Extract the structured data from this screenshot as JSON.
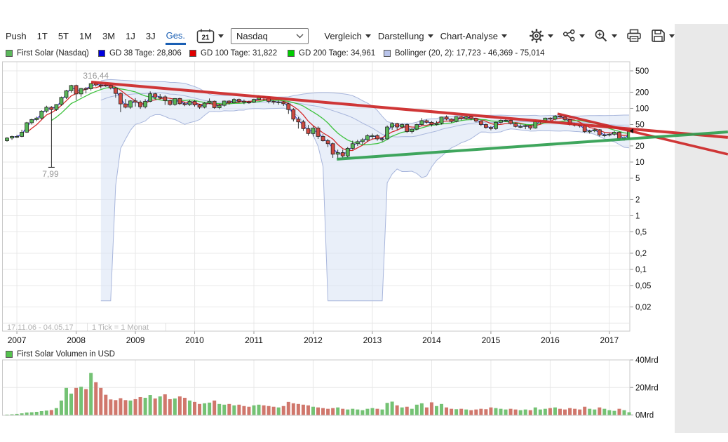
{
  "toolbar": {
    "push": "Push",
    "ranges": [
      "1T",
      "5T",
      "1M",
      "3M",
      "1J",
      "3J",
      "Ges."
    ],
    "active_range": "Ges.",
    "calendar_label": "21",
    "symbol": "Nasdaq",
    "menus": [
      "Vergleich",
      "Darstellung",
      "Chart-Analyse"
    ],
    "icon_names": [
      "gear-icon",
      "share-icon",
      "zoom-in-icon",
      "printer-icon",
      "save-icon"
    ]
  },
  "legend": [
    {
      "label": "First Solar (Nasdaq)",
      "color": "#5cb85c"
    },
    {
      "label": "GD 38 Tage: 28,806",
      "color": "#0000e0"
    },
    {
      "label": "GD 100 Tage: 31,822",
      "color": "#e00000"
    },
    {
      "label": "GD 200 Tage: 34,961",
      "color": "#00cc00"
    },
    {
      "label": "Bollinger (20, 2): 17,723 - 46,369 - 75,014",
      "color": "#b9c4ea"
    }
  ],
  "volume_legend": {
    "label": "First Solar Volumen in USD",
    "color": "#55c24e"
  },
  "footer": {
    "date_range": "17.11.06 - 04.05.17",
    "tick_info": "1 Tick = 1 Monat"
  },
  "chart_data": [
    {
      "type": "candlestick",
      "title": "First Solar (Nasdaq)",
      "scale": "log",
      "tick_interval": "1 Monat",
      "start_month": "2006-11",
      "end_month": "2017-05",
      "x_labels": [
        "2007",
        "2008",
        "2009",
        "2010",
        "2011",
        "2012",
        "2013",
        "2014",
        "2015",
        "2016",
        "2017"
      ],
      "y_ticks": [
        [
          500,
          "500"
        ],
        [
          200,
          "200"
        ],
        [
          100,
          "100"
        ],
        [
          50,
          "50"
        ],
        [
          20,
          "20"
        ],
        [
          10,
          "10"
        ],
        [
          5,
          "5"
        ],
        [
          2,
          "2"
        ],
        [
          1,
          "1"
        ],
        [
          0.5,
          "0,5"
        ],
        [
          0.2,
          "0,2"
        ],
        [
          0.1,
          "0,1"
        ],
        [
          0.05,
          "0,05"
        ],
        [
          0.02,
          "0,02"
        ]
      ],
      "annotations": [
        {
          "text": "316,44",
          "m": 18.0,
          "v": 359,
          "anchor": "middle"
        },
        {
          "text": "7,99",
          "m": 8.8,
          "v": 5.3,
          "anchor": "middle"
        }
      ],
      "glitch_cap_index": 9,
      "glitch_low": 7.99,
      "last_price": 38,
      "indicators": {
        "gd38_window": 2,
        "gd100_window": 5,
        "gd200_window": 10,
        "bollinger_window": 20,
        "bollinger_k": 2
      },
      "trendlines": [
        {
          "name": "resistance-2008",
          "color": "#cc2626",
          "width": 4,
          "points": [
            [
              17.05,
              308.9
            ],
            [
              146.0,
              28.8
            ]
          ]
        },
        {
          "name": "resistance-2016",
          "color": "#cc2626",
          "width": 3.5,
          "points": [
            [
              111.5,
              79.5
            ],
            [
              146.0,
              13.95
            ]
          ]
        },
        {
          "name": "support-2012",
          "color": "#2f9e4f",
          "width": 4,
          "points": [
            [
              66.8,
              11.3
            ],
            [
              146.0,
              36.4
            ]
          ]
        }
      ],
      "colors": {
        "candle_up": "#58b558",
        "candle_down": "#cf4a42",
        "candle_border": "#222222",
        "gd38": "#2a2ae0",
        "gd100": "#d42a2a",
        "gd200": "#3ec23e",
        "bollinger_fill": "#d7e1f4",
        "bollinger_edge": "#a8b6dc",
        "grid": "#e8e8e8",
        "border": "#c9c9c9",
        "axis_text": "#111111",
        "muted_text": "#b3b3b3"
      },
      "ohlc": [
        [
          25,
          29,
          24,
          28
        ],
        [
          28,
          31,
          26,
          30
        ],
        [
          30,
          32,
          28,
          30
        ],
        [
          30,
          40,
          29,
          36
        ],
        [
          36,
          56,
          35,
          54
        ],
        [
          54,
          64,
          50,
          62
        ],
        [
          62,
          70,
          58,
          66
        ],
        [
          66,
          92,
          62,
          89
        ],
        [
          89,
          112,
          83,
          105
        ],
        [
          105,
          110,
          7.99,
          95
        ],
        [
          95,
          120,
          90,
          118
        ],
        [
          118,
          166,
          112,
          160
        ],
        [
          160,
          221,
          150,
          213
        ],
        [
          213,
          275,
          197,
          267
        ],
        [
          267,
          277,
          142,
          186
        ],
        [
          186,
          240,
          165,
          235
        ],
        [
          235,
          250,
          190,
          232
        ],
        [
          232,
          295,
          215,
          289
        ],
        [
          289,
          316.44,
          255,
          273
        ],
        [
          273,
          288,
          235,
          272
        ],
        [
          272,
          291,
          252,
          267
        ],
        [
          267,
          280,
          226,
          240
        ],
        [
          240,
          250,
          158,
          190
        ],
        [
          190,
          198,
          85,
          121
        ],
        [
          121,
          150,
          100,
          105
        ],
        [
          105,
          142,
          98,
          138
        ],
        [
          138,
          155,
          108,
          131
        ],
        [
          131,
          140,
          98,
          107
        ],
        [
          107,
          148,
          100,
          135
        ],
        [
          135,
          207,
          130,
          187
        ],
        [
          187,
          195,
          148,
          162
        ],
        [
          162,
          185,
          148,
          164
        ],
        [
          164,
          175,
          116,
          140
        ],
        [
          140,
          146,
          112,
          118
        ],
        [
          118,
          155,
          112,
          153
        ],
        [
          153,
          158,
          116,
          122
        ],
        [
          122,
          132,
          110,
          117
        ],
        [
          117,
          142,
          112,
          135
        ],
        [
          135,
          142,
          108,
          116
        ],
        [
          116,
          122,
          98,
          105
        ],
        [
          105,
          131,
          100,
          125
        ],
        [
          125,
          153,
          120,
          136
        ],
        [
          136,
          140,
          98,
          103
        ],
        [
          103,
          121,
          97,
          114
        ],
        [
          114,
          140,
          108,
          137
        ],
        [
          137,
          142,
          118,
          127
        ],
        [
          127,
          154,
          123,
          147
        ],
        [
          147,
          152,
          127,
          136
        ],
        [
          136,
          146,
          120,
          131
        ],
        [
          131,
          139,
          122,
          130
        ],
        [
          130,
          151,
          126,
          147
        ],
        [
          147,
          175,
          141,
          165
        ],
        [
          165,
          171,
          139,
          160
        ],
        [
          160,
          164,
          124,
          135
        ],
        [
          135,
          141,
          119,
          132
        ],
        [
          132,
          139,
          117,
          132
        ],
        [
          132,
          137,
          111,
          122
        ],
        [
          122,
          127,
          79,
          95
        ],
        [
          95,
          101,
          57,
          63
        ],
        [
          63,
          69,
          42,
          56
        ],
        [
          56,
          61,
          38,
          42
        ],
        [
          42,
          49,
          31,
          34
        ],
        [
          34,
          47,
          30,
          43
        ],
        [
          43,
          46,
          27,
          30
        ],
        [
          30,
          33,
          24,
          25
        ],
        [
          25,
          27,
          19,
          22
        ],
        [
          22,
          23,
          12,
          14
        ],
        [
          14,
          17,
          11.43,
          15
        ],
        [
          15,
          17,
          12,
          13
        ],
        [
          13,
          19,
          12,
          18
        ],
        [
          18,
          25,
          17,
          22
        ],
        [
          22,
          26,
          20,
          24
        ],
        [
          24,
          28,
          21,
          26
        ],
        [
          26,
          33,
          24,
          31
        ],
        [
          31,
          34,
          27,
          31
        ],
        [
          31,
          33,
          25,
          27
        ],
        [
          27,
          29,
          24,
          27
        ],
        [
          27,
          48,
          26,
          45
        ],
        [
          45,
          55,
          40,
          52
        ],
        [
          52,
          54,
          40,
          45
        ],
        [
          45,
          52,
          42,
          50
        ],
        [
          50,
          52,
          35,
          37
        ],
        [
          37,
          43,
          34,
          41
        ],
        [
          41,
          52,
          39,
          50
        ],
        [
          50,
          66,
          48,
          59
        ],
        [
          59,
          62,
          52,
          55
        ],
        [
          55,
          58,
          46,
          50
        ],
        [
          50,
          58,
          48,
          53
        ],
        [
          53,
          70,
          50,
          69
        ],
        [
          69,
          74,
          60,
          63
        ],
        [
          63,
          65,
          54,
          57
        ],
        [
          57,
          71,
          55,
          70
        ],
        [
          70,
          72,
          60,
          65
        ],
        [
          65,
          73,
          62,
          70
        ],
        [
          70,
          72,
          60,
          65
        ],
        [
          65,
          67,
          55,
          58
        ],
        [
          58,
          61,
          47,
          50
        ],
        [
          50,
          52,
          42,
          44
        ],
        [
          44,
          47,
          39,
          42
        ],
        [
          42,
          56,
          40,
          55
        ],
        [
          55,
          62,
          52,
          60
        ],
        [
          60,
          64,
          56,
          60
        ],
        [
          60,
          62,
          50,
          52
        ],
        [
          52,
          54,
          44,
          46
        ],
        [
          46,
          50,
          43,
          46
        ],
        [
          46,
          50,
          41,
          48
        ],
        [
          48,
          49,
          40,
          43
        ],
        [
          43,
          59,
          42,
          57
        ],
        [
          57,
          61,
          52,
          58
        ],
        [
          58,
          67,
          54,
          66
        ],
        [
          66,
          68,
          58,
          63
        ],
        [
          63,
          74.8,
          60,
          72
        ],
        [
          72,
          75,
          65,
          69
        ],
        [
          69,
          71,
          58,
          62
        ],
        [
          62,
          64,
          48,
          50
        ],
        [
          50,
          54,
          46,
          49
        ],
        [
          49,
          50,
          44,
          47
        ],
        [
          47,
          48,
          35,
          37
        ],
        [
          37,
          40,
          34,
          38
        ],
        [
          38,
          42,
          36,
          40
        ],
        [
          40,
          41,
          30,
          32
        ],
        [
          32,
          35,
          29,
          32
        ],
        [
          32,
          35,
          30,
          33
        ],
        [
          33,
          38,
          31,
          36
        ],
        [
          36,
          37,
          25,
          27
        ],
        [
          27,
          30,
          25,
          28
        ],
        [
          28,
          40,
          27,
          38
        ]
      ]
    },
    {
      "type": "bar",
      "title": "First Solar Volumen in USD",
      "ylabel": "Mrd USD",
      "y_ticks": [
        [
          40,
          "40Mrd"
        ],
        [
          20,
          "20Mrd"
        ],
        [
          0,
          "0Mrd"
        ]
      ],
      "color_rule": "green if candle close >= open, else red",
      "bar_up": "#74c274",
      "bar_down": "#d0776c",
      "values": [
        0.3,
        0.5,
        0.8,
        1.2,
        1.8,
        2.0,
        2.3,
        2.8,
        3.2,
        3.6,
        5.0,
        10.5,
        19.7,
        15.5,
        19.7,
        20.5,
        18.8,
        30.5,
        23.8,
        19.7,
        14.7,
        11.3,
        10.8,
        12.2,
        10.8,
        10.5,
        11.5,
        13,
        12.5,
        14.5,
        12,
        13.5,
        15,
        11.5,
        12,
        13.5,
        12.5,
        10.5,
        9.5,
        8,
        8.5,
        9,
        10.5,
        8,
        7.5,
        8,
        7,
        7.5,
        6.5,
        6,
        7,
        7.5,
        7,
        6.5,
        6,
        5.5,
        6.5,
        9.5,
        8.5,
        8,
        7.5,
        7,
        6,
        5.5,
        5,
        4.5,
        5,
        5.5,
        4.5,
        4,
        4.5,
        4,
        3.5,
        4.5,
        5,
        4.5,
        4,
        8.8,
        9.7,
        7,
        5.5,
        6,
        4.5,
        7.5,
        8.5,
        5.5,
        9.2,
        6.5,
        8,
        5.5,
        4.5,
        4.2,
        4.5,
        4,
        3.5,
        4,
        4.5,
        4.2,
        5.5,
        5,
        4.5,
        4,
        4.5,
        4,
        3.5,
        4,
        3.5,
        5.5,
        4,
        4.5,
        5,
        5.5,
        4.5,
        4,
        5,
        4.5,
        4,
        6,
        4.5,
        4,
        5.5,
        4.5,
        3.5,
        3,
        4.5,
        3.5,
        2
      ]
    }
  ]
}
